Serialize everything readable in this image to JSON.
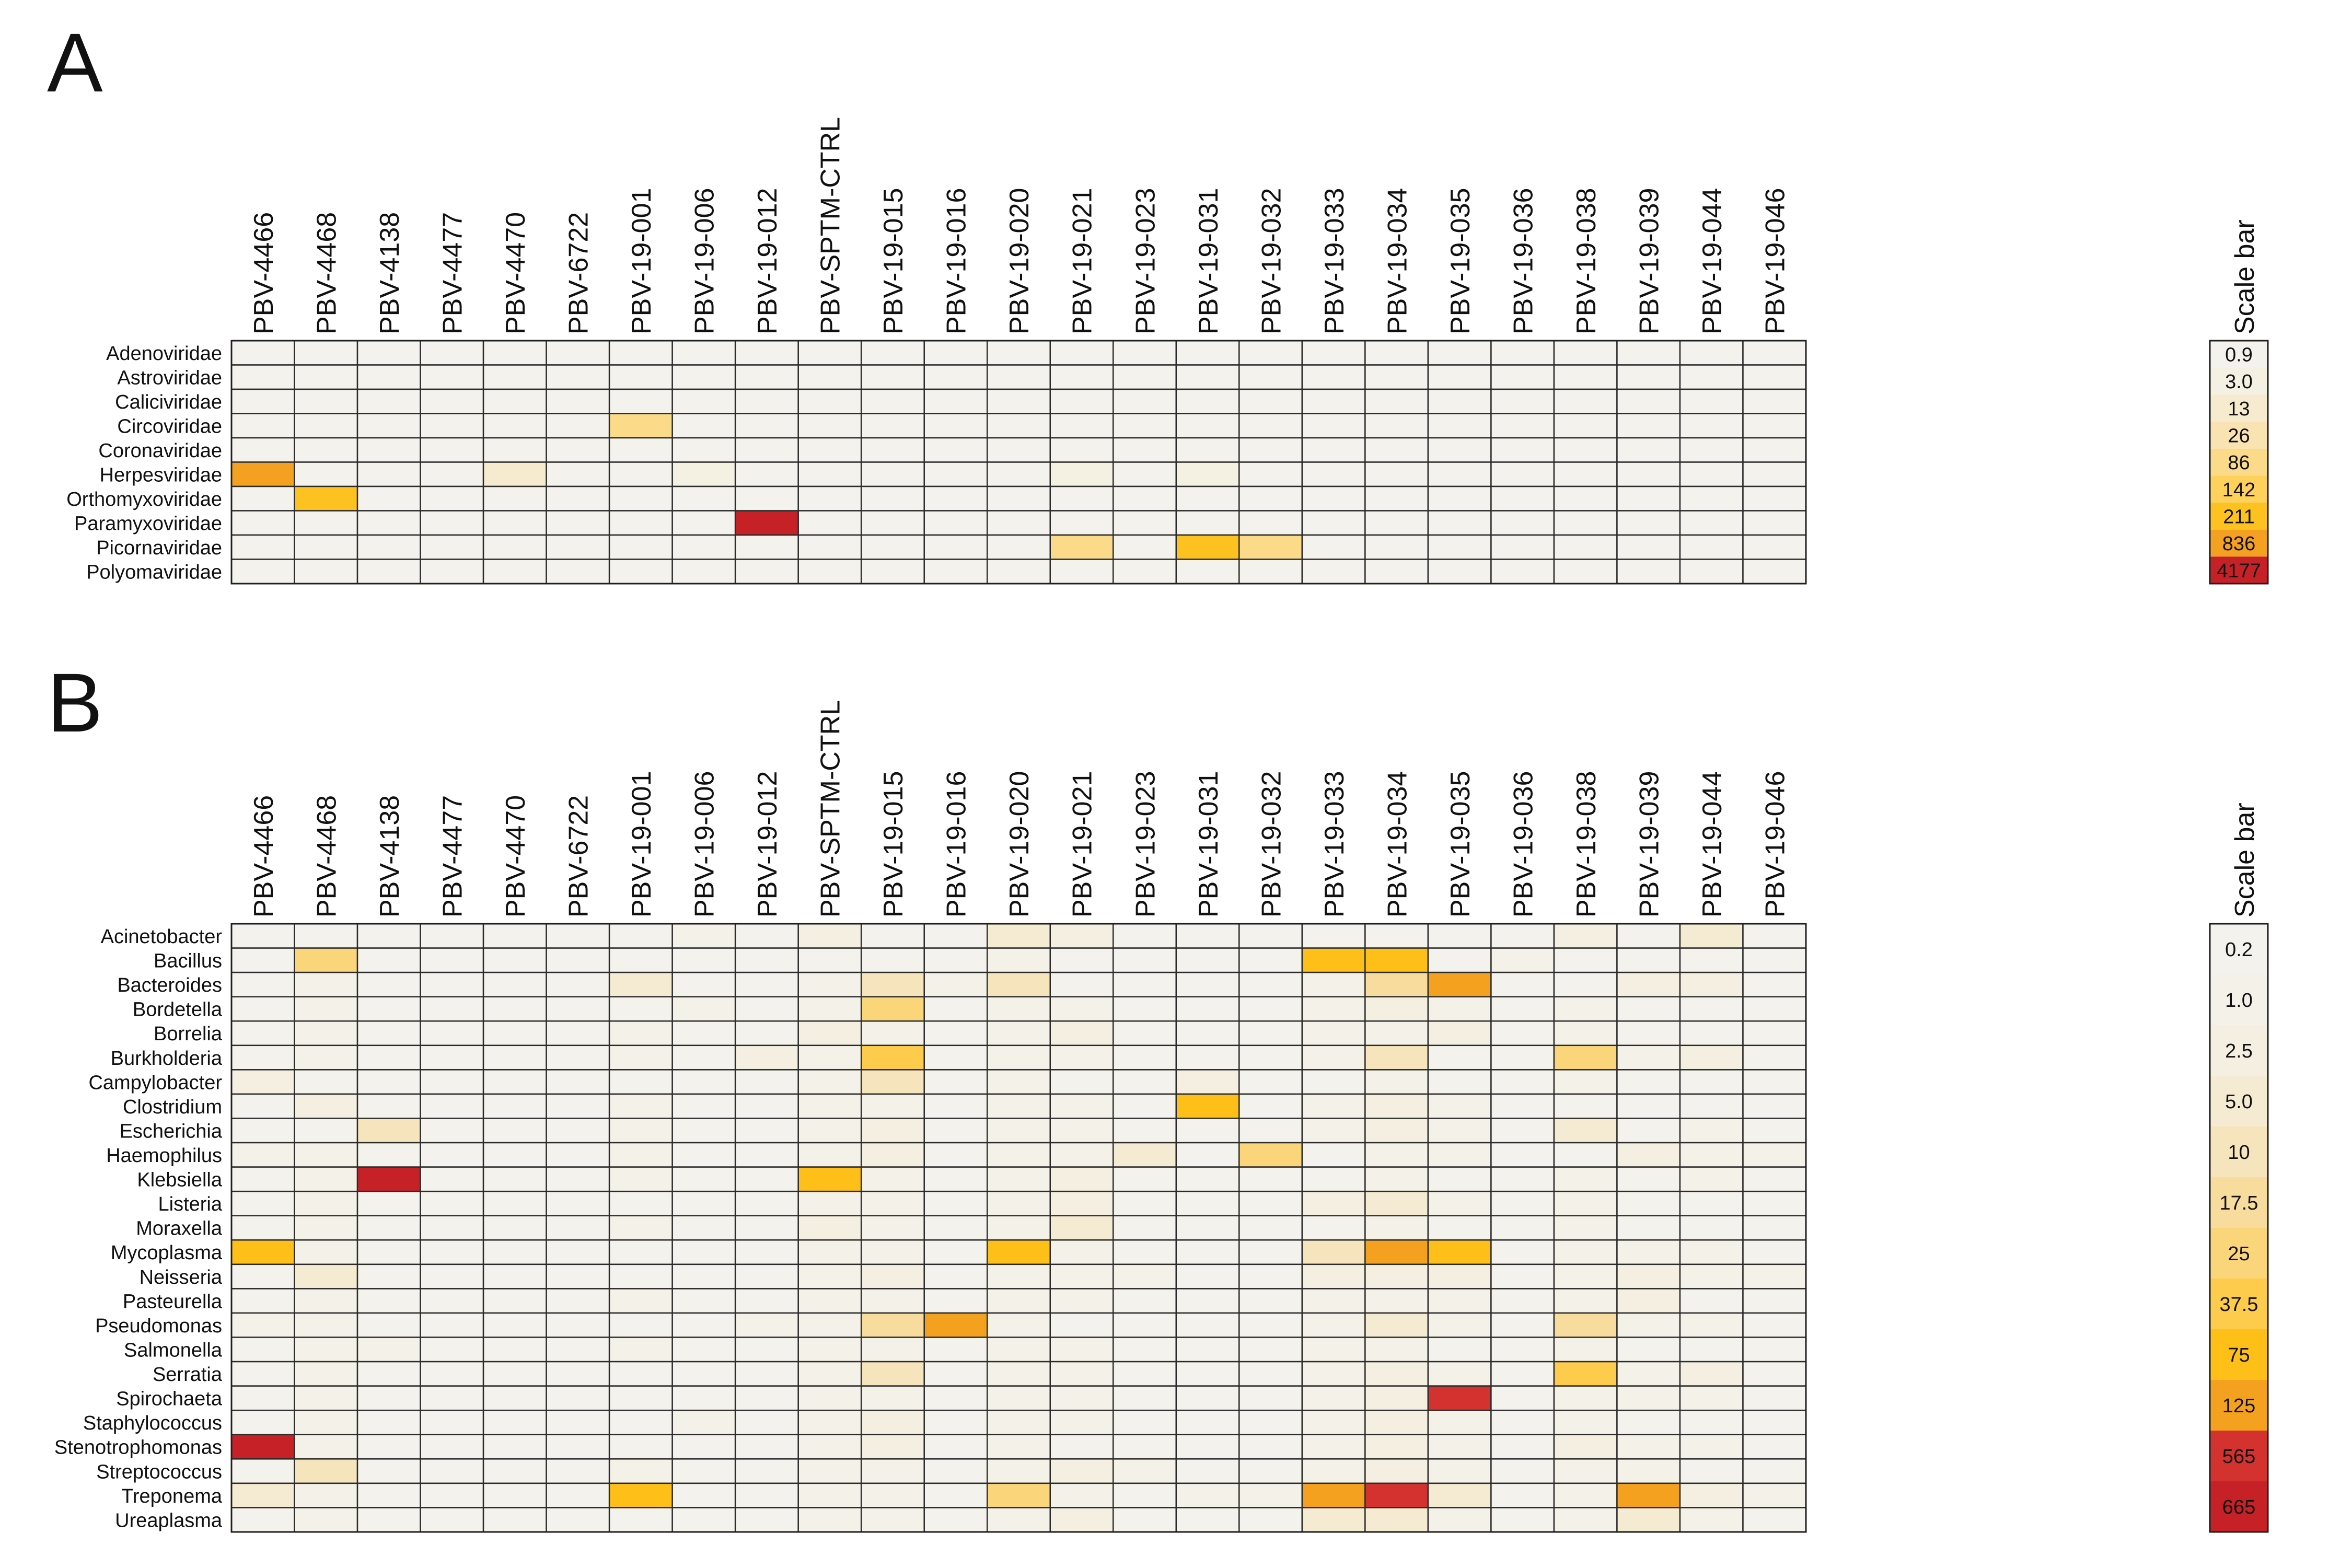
{
  "chart_data": [
    {
      "type": "heatmap",
      "panel_label": "A",
      "columns": [
        "PBV-4466",
        "PBV-4468",
        "PBV-4138",
        "PBV-4477",
        "PBV-4470",
        "PBV-6722",
        "PBV-19-001",
        "PBV-19-006",
        "PBV-19-012",
        "PBV-SPTM-CTRL",
        "PBV-19-015",
        "PBV-19-016",
        "PBV-19-020",
        "PBV-19-021",
        "PBV-19-023",
        "PBV-19-031",
        "PBV-19-032",
        "PBV-19-033",
        "PBV-19-034",
        "PBV-19-035",
        "PBV-19-036",
        "PBV-19-038",
        "PBV-19-039",
        "PBV-19-044",
        "PBV-19-046"
      ],
      "rows": [
        "Adenoviridae",
        "Astroviridae",
        "Caliciviridae",
        "Circoviridae",
        "Coronaviridae",
        "Herpesviridae",
        "Orthomyxoviridae",
        "Paramyxoviridae",
        "Picornaviridae",
        "Polyomaviridae"
      ],
      "levels": [
        [
          0,
          0,
          0,
          0,
          0,
          0,
          0,
          0,
          0,
          0,
          0,
          0,
          0,
          0,
          0,
          0,
          0,
          0,
          0,
          0,
          0,
          0,
          0,
          0,
          0
        ],
        [
          0,
          0,
          0,
          0,
          0,
          0,
          0,
          0,
          0,
          0,
          0,
          0,
          0,
          0,
          0,
          0,
          0,
          0,
          0,
          0,
          0,
          0,
          0,
          0,
          0
        ],
        [
          0,
          0,
          0,
          0,
          0,
          0,
          0,
          0,
          0,
          0,
          0,
          0,
          0,
          0,
          0,
          0,
          0,
          0,
          0,
          0,
          0,
          0,
          0,
          0,
          0
        ],
        [
          0,
          0,
          0,
          0,
          0,
          0,
          4,
          0,
          0,
          0,
          0,
          0,
          0,
          0,
          0,
          0,
          0,
          0,
          0,
          0,
          0,
          0,
          0,
          0,
          0
        ],
        [
          0,
          0,
          0,
          0,
          0,
          0,
          0,
          0,
          0,
          0,
          0,
          0,
          0,
          0,
          0,
          0,
          0,
          0,
          0,
          0,
          0,
          0,
          0,
          0,
          0
        ],
        [
          7,
          0,
          0,
          0,
          2,
          0,
          0,
          1,
          0,
          0,
          0,
          0,
          0,
          1,
          0,
          1,
          0,
          0,
          0,
          0,
          0,
          0,
          0,
          0,
          0
        ],
        [
          0,
          6,
          0,
          0,
          0,
          0,
          0,
          0,
          0,
          0,
          0,
          0,
          0,
          0,
          0,
          0,
          0,
          0,
          0,
          0,
          0,
          0,
          0,
          0,
          0
        ],
        [
          0,
          0,
          0,
          0,
          0,
          0,
          0,
          0,
          8,
          0,
          0,
          0,
          0,
          0,
          0,
          0,
          0,
          0,
          0,
          0,
          0,
          0,
          0,
          0,
          0
        ],
        [
          0,
          0,
          0,
          0,
          0,
          0,
          0,
          0,
          0,
          0,
          0,
          0,
          0,
          4,
          0,
          6,
          4,
          0,
          0,
          0,
          0,
          0,
          0,
          0,
          0
        ],
        [
          0,
          0,
          0,
          0,
          0,
          0,
          0,
          0,
          0,
          0,
          0,
          0,
          0,
          0,
          0,
          0,
          0,
          0,
          0,
          0,
          0,
          0,
          0,
          0,
          0
        ]
      ],
      "scale_title": "Scale bar",
      "scale_labels": [
        "0.9",
        "3.0",
        "13",
        "26",
        "86",
        "142",
        "211",
        "836",
        "4177"
      ],
      "scale_colors": [
        "#f3f2ec",
        "#f4f0e2",
        "#f7ebcf",
        "#f9e3b2",
        "#fbdb8a",
        "#fdd15c",
        "#fec220",
        "#f4a122",
        "#c62127"
      ]
    },
    {
      "type": "heatmap",
      "panel_label": "B",
      "columns": [
        "PBV-4466",
        "PBV-4468",
        "PBV-4138",
        "PBV-4477",
        "PBV-4470",
        "PBV-6722",
        "PBV-19-001",
        "PBV-19-006",
        "PBV-19-012",
        "PBV-SPTM-CTRL",
        "PBV-19-015",
        "PBV-19-016",
        "PBV-19-020",
        "PBV-19-021",
        "PBV-19-023",
        "PBV-19-031",
        "PBV-19-032",
        "PBV-19-033",
        "PBV-19-034",
        "PBV-19-035",
        "PBV-19-036",
        "PBV-19-038",
        "PBV-19-039",
        "PBV-19-044",
        "PBV-19-046"
      ],
      "rows": [
        "Acinetobacter",
        "Bacillus",
        "Bacteroides",
        "Bordetella",
        "Borrelia",
        "Burkholderia",
        "Campylobacter",
        "Clostridium",
        "Escherichia",
        "Haemophilus",
        "Klebsiella",
        "Listeria",
        "Moraxella",
        "Mycoplasma",
        "Neisseria",
        "Pasteurella",
        "Pseudomonas",
        "Salmonella",
        "Serratia",
        "Spirochaeta",
        "Staphylococcus",
        "Stenotrophomonas",
        "Streptococcus",
        "Treponema",
        "Ureaplasma"
      ],
      "levels": [
        [
          0,
          0,
          0,
          0,
          0,
          0,
          0,
          1,
          0,
          2,
          0,
          0,
          3,
          2,
          0,
          0,
          0,
          0,
          0,
          0,
          0,
          2,
          0,
          3,
          0
        ],
        [
          0,
          6,
          0,
          0,
          0,
          0,
          0,
          0,
          0,
          0,
          0,
          0,
          1,
          0,
          0,
          0,
          0,
          8,
          8,
          0,
          1,
          0,
          0,
          0,
          0
        ],
        [
          0,
          1,
          0,
          0,
          0,
          0,
          3,
          0,
          0,
          1,
          4,
          1,
          4,
          0,
          0,
          0,
          0,
          1,
          5,
          9,
          0,
          0,
          2,
          2,
          0
        ],
        [
          0,
          1,
          0,
          0,
          0,
          0,
          0,
          1,
          0,
          1,
          6,
          0,
          1,
          1,
          0,
          0,
          0,
          1,
          2,
          1,
          0,
          1,
          0,
          0,
          0
        ],
        [
          0,
          1,
          0,
          0,
          0,
          0,
          1,
          0,
          0,
          2,
          1,
          0,
          1,
          2,
          0,
          0,
          0,
          1,
          1,
          2,
          0,
          1,
          0,
          0,
          0
        ],
        [
          0,
          1,
          0,
          0,
          0,
          0,
          1,
          0,
          2,
          1,
          7,
          0,
          1,
          1,
          0,
          0,
          0,
          1,
          4,
          0,
          0,
          6,
          1,
          2,
          0
        ],
        [
          2,
          0,
          0,
          0,
          0,
          0,
          0,
          0,
          0,
          1,
          4,
          0,
          1,
          0,
          0,
          2,
          0,
          0,
          1,
          0,
          0,
          1,
          0,
          0,
          0
        ],
        [
          0,
          2,
          0,
          0,
          0,
          0,
          1,
          0,
          0,
          1,
          1,
          0,
          1,
          1,
          0,
          8,
          0,
          1,
          2,
          1,
          0,
          0,
          0,
          0,
          0
        ],
        [
          0,
          0,
          4,
          0,
          0,
          0,
          1,
          0,
          0,
          1,
          2,
          0,
          1,
          1,
          0,
          0,
          0,
          1,
          2,
          1,
          0,
          3,
          0,
          1,
          0
        ],
        [
          1,
          1,
          0,
          0,
          0,
          0,
          1,
          0,
          0,
          1,
          2,
          0,
          1,
          1,
          3,
          0,
          6,
          0,
          1,
          1,
          0,
          0,
          2,
          1,
          1
        ],
        [
          0,
          1,
          11,
          0,
          0,
          0,
          1,
          0,
          0,
          8,
          1,
          0,
          1,
          2,
          0,
          0,
          0,
          0,
          1,
          0,
          0,
          1,
          0,
          1,
          0
        ],
        [
          0,
          1,
          0,
          0,
          0,
          0,
          0,
          0,
          0,
          1,
          1,
          0,
          1,
          2,
          0,
          0,
          0,
          2,
          3,
          1,
          0,
          1,
          0,
          0,
          0
        ],
        [
          0,
          1,
          0,
          0,
          0,
          0,
          1,
          0,
          0,
          2,
          1,
          0,
          1,
          3,
          0,
          0,
          0,
          0,
          1,
          0,
          0,
          1,
          0,
          0,
          0
        ],
        [
          8,
          1,
          0,
          0,
          0,
          0,
          0,
          0,
          0,
          1,
          1,
          0,
          8,
          1,
          0,
          0,
          0,
          4,
          9,
          8,
          0,
          1,
          1,
          1,
          0
        ],
        [
          0,
          3,
          0,
          0,
          0,
          0,
          0,
          0,
          0,
          1,
          2,
          0,
          1,
          1,
          1,
          0,
          0,
          2,
          2,
          2,
          0,
          1,
          2,
          1,
          1
        ],
        [
          0,
          1,
          0,
          0,
          0,
          0,
          1,
          0,
          0,
          1,
          1,
          0,
          1,
          1,
          0,
          0,
          0,
          1,
          1,
          1,
          0,
          1,
          2,
          0,
          0
        ],
        [
          1,
          1,
          0,
          0,
          0,
          0,
          0,
          0,
          1,
          1,
          5,
          9,
          1,
          0,
          0,
          0,
          0,
          1,
          3,
          1,
          0,
          5,
          1,
          1,
          0
        ],
        [
          0,
          1,
          1,
          0,
          0,
          0,
          1,
          0,
          0,
          1,
          1,
          0,
          1,
          1,
          0,
          0,
          0,
          1,
          1,
          0,
          0,
          1,
          0,
          0,
          0
        ],
        [
          0,
          1,
          0,
          0,
          0,
          0,
          0,
          0,
          0,
          1,
          4,
          0,
          1,
          1,
          0,
          0,
          0,
          1,
          2,
          1,
          0,
          7,
          1,
          2,
          0
        ],
        [
          0,
          1,
          0,
          0,
          0,
          0,
          0,
          0,
          0,
          1,
          1,
          0,
          1,
          1,
          0,
          0,
          0,
          1,
          2,
          10,
          0,
          1,
          1,
          1,
          0
        ],
        [
          0,
          1,
          0,
          0,
          0,
          0,
          0,
          1,
          0,
          1,
          2,
          0,
          1,
          1,
          0,
          0,
          0,
          1,
          2,
          1,
          0,
          1,
          0,
          0,
          0
        ],
        [
          11,
          1,
          0,
          0,
          0,
          0,
          0,
          0,
          0,
          1,
          2,
          0,
          1,
          0,
          0,
          0,
          0,
          1,
          2,
          1,
          0,
          2,
          1,
          1,
          0
        ],
        [
          0,
          4,
          0,
          0,
          0,
          0,
          1,
          0,
          0,
          1,
          1,
          0,
          1,
          2,
          1,
          0,
          0,
          1,
          2,
          1,
          0,
          1,
          1,
          0,
          0
        ],
        [
          3,
          1,
          0,
          0,
          0,
          0,
          8,
          0,
          0,
          1,
          1,
          0,
          6,
          1,
          0,
          1,
          1,
          9,
          10,
          3,
          0,
          1,
          9,
          2,
          1
        ],
        [
          0,
          1,
          0,
          0,
          0,
          0,
          0,
          0,
          0,
          1,
          1,
          0,
          1,
          2,
          0,
          0,
          0,
          3,
          3,
          1,
          0,
          1,
          3,
          1,
          0
        ]
      ],
      "scale_title": "Scale bar",
      "scale_labels": [
        "0.2",
        "1.0",
        "2.5",
        "5.0",
        "10",
        "17.5",
        "25",
        "37.5",
        "75",
        "125",
        "565",
        "665"
      ],
      "scale_colors": [
        "#f3f2ec",
        "#f3f1e8",
        "#f4efe0",
        "#f5ebd2",
        "#f6e4bc",
        "#f8dc9e",
        "#fbd57a",
        "#fdcc4c",
        "#fec018",
        "#f4a11f",
        "#d3322f",
        "#c62127"
      ]
    }
  ]
}
